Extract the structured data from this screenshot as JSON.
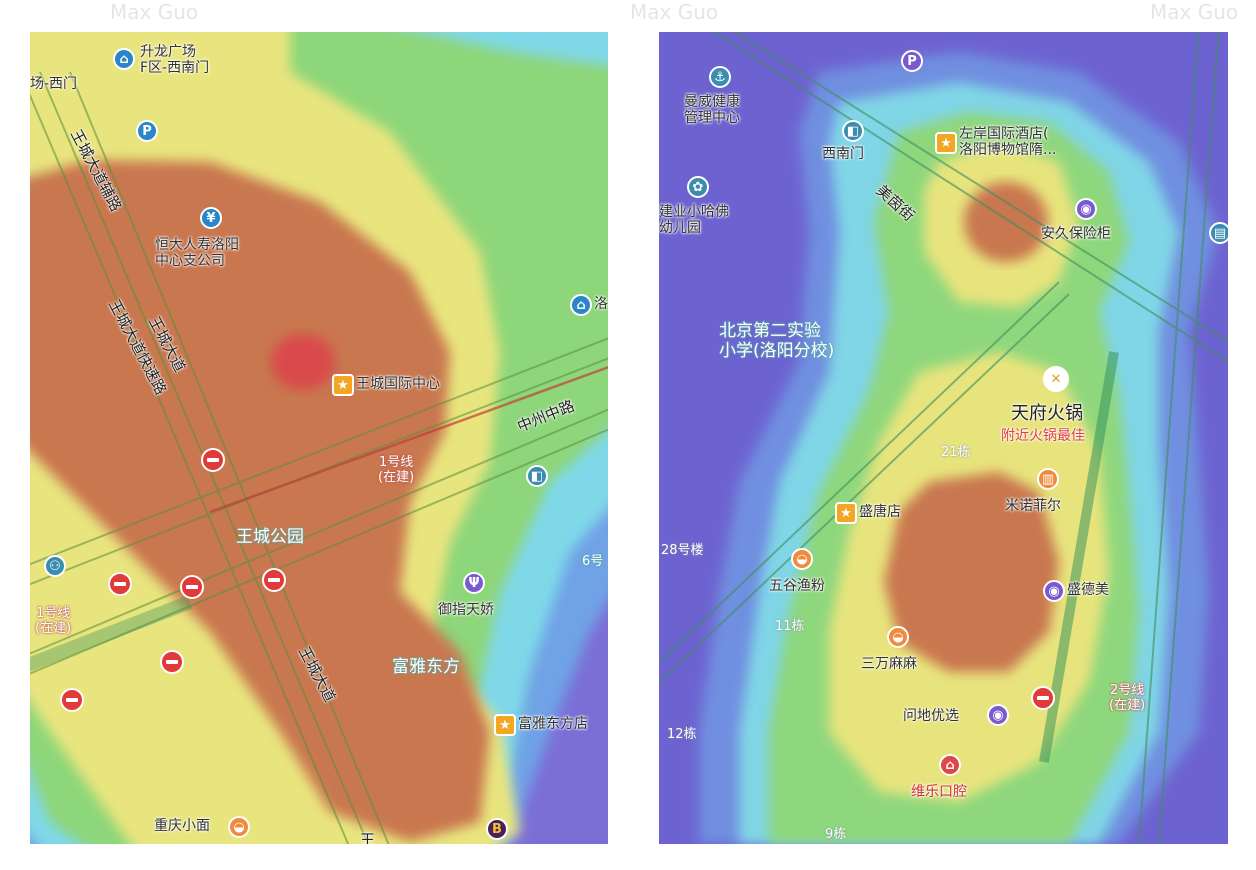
{
  "watermark": "Max Guo",
  "left_map": {
    "pois": {
      "shenglong": "升龙广场\nF区-西南门",
      "west_gate": "场-西门",
      "hengda": "恒大人寿洛阳\n中心支公司",
      "wangcheng_center": "王城国际中心",
      "wangcheng_park": "王城公园",
      "yuzhi": "御指天娇",
      "fuya_east": "富雅东方",
      "fuya_store": "富雅东方店",
      "chongqing": "重庆小面",
      "partial_right": "洛"
    },
    "roads": {
      "aux": "王城大道辅路",
      "expressway": "王城大道快速路",
      "main": "王城大道",
      "main2": "王城大道",
      "zhongzhou": "中州中路",
      "bottom_frag": "王"
    },
    "metro": {
      "line1_a": "1号线\n(在建)",
      "line1_b": "1号线\n(在建)",
      "line6": "6号"
    },
    "icons": [
      "parking-icon",
      "bus-icon",
      "bank-icon",
      "restaurant-icon",
      "no-entry-icon"
    ]
  },
  "right_map": {
    "pois": {
      "manwei": "曼威健康\n管理中心",
      "xinan_gate": "西南门",
      "zuoan": "左岸国际酒店(\n洛阳博物馆隋...",
      "kindergarten": "建业小哈佛\n幼儿园",
      "anjiu": "安久保险柜",
      "school": "北京第二实验\n小学(洛阳分校)",
      "tianfu": "天府火锅",
      "tianfu_sub": "附近火锅最佳",
      "shengtang": "盛唐店",
      "minuo": "米诺菲尔",
      "wugu": "五谷渔粉",
      "shengdemei": "盛德美",
      "sanwan": "三万麻麻",
      "wendi": "问地优选",
      "weile": "维乐口腔"
    },
    "roads": {
      "meiyin": "美茵街"
    },
    "buildings": {
      "b21": "21栋",
      "b28": "28号楼",
      "b11": "11栋",
      "b12": "12栋",
      "b9": "9栋"
    },
    "metro": {
      "line2": "2号线\n(在建)"
    },
    "icons": [
      "parking-icon",
      "anchor-icon",
      "sprout-icon",
      "bus-icon",
      "bus-stop-icon"
    ]
  }
}
